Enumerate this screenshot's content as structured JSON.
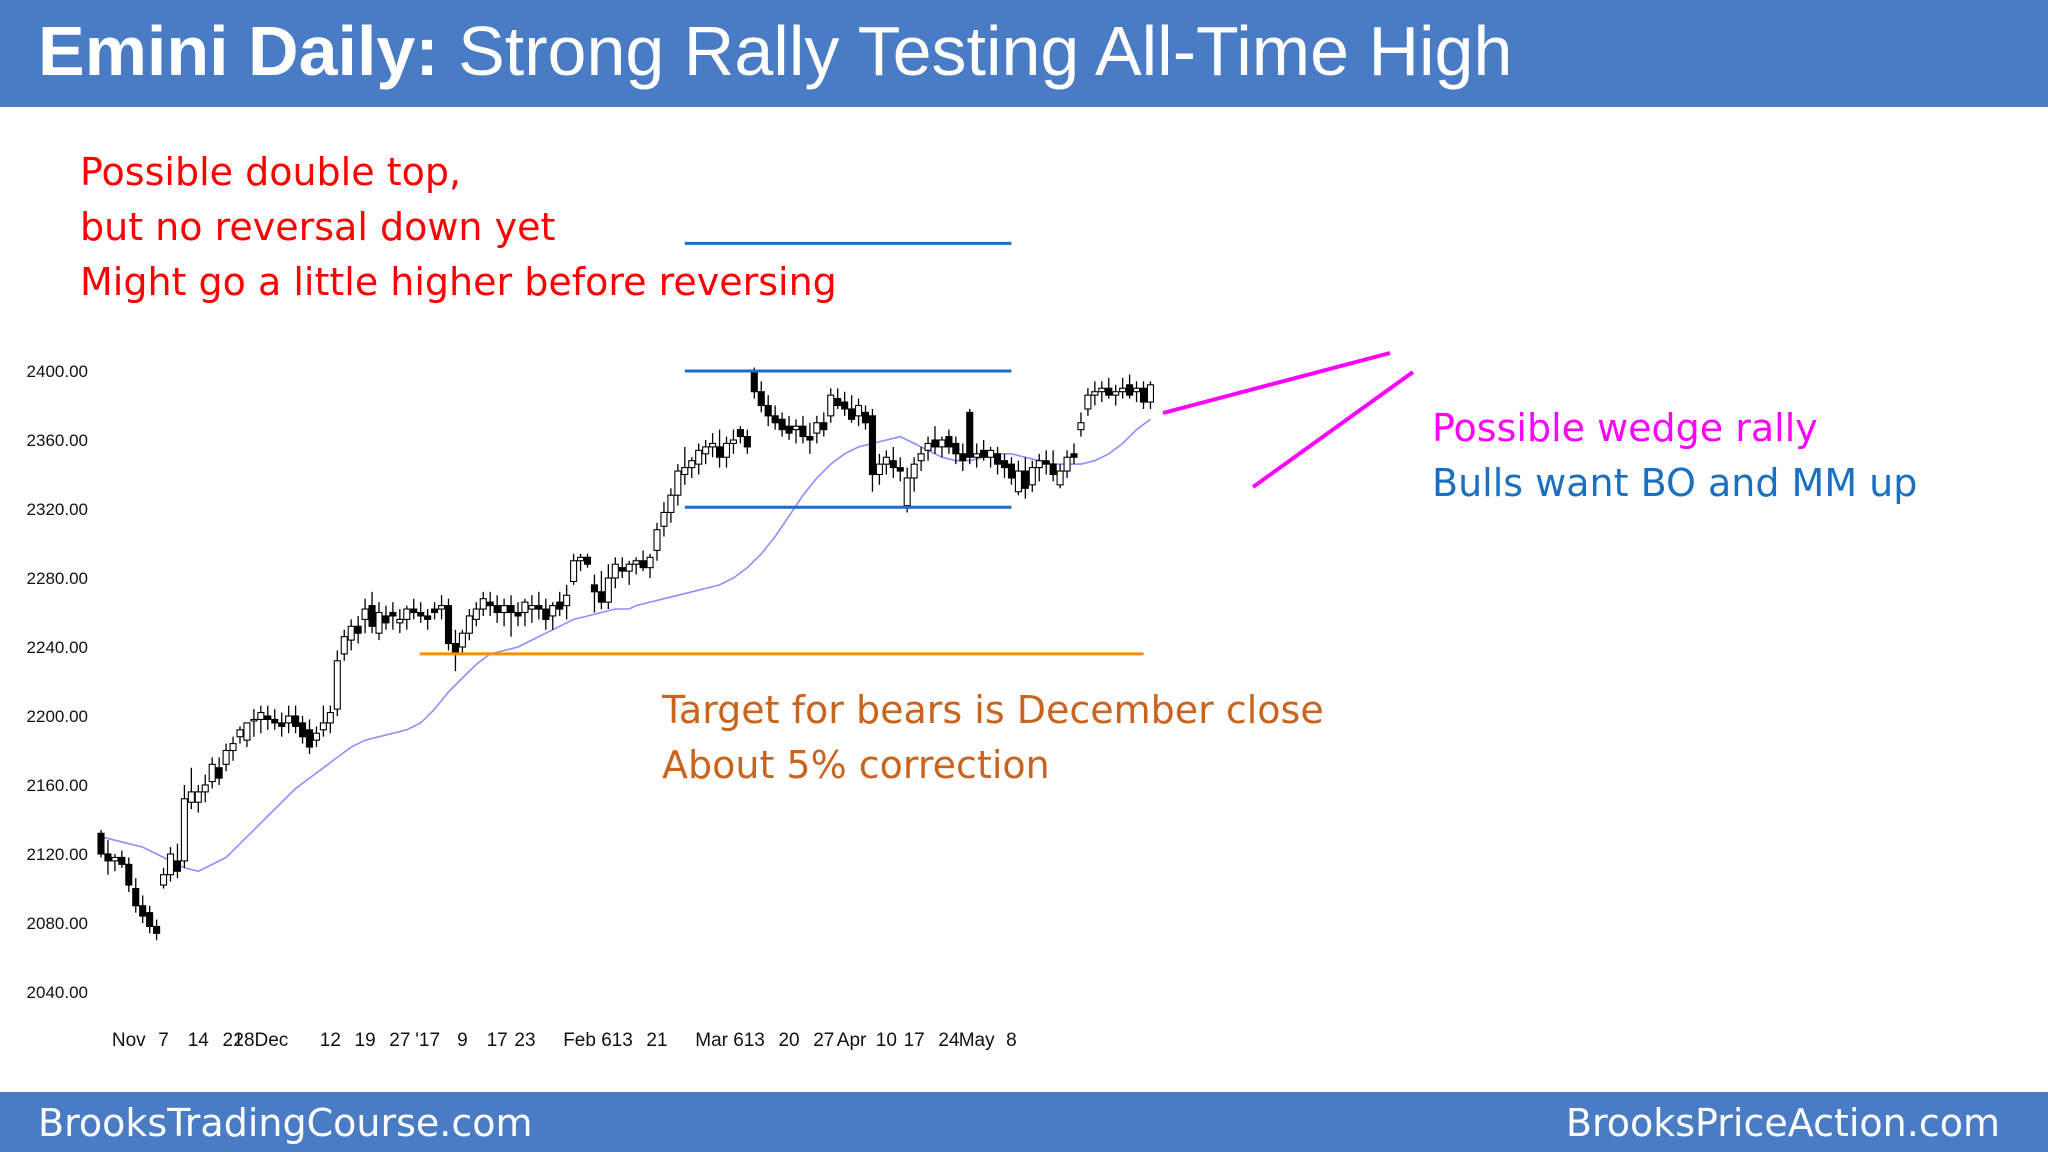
{
  "header": {
    "title_bold": "Emini Daily:",
    "title_rest": " Strong Rally Testing All-Time High"
  },
  "footer": {
    "left": "BrooksTradingCourse.com",
    "right": "BrooksPriceAction.com"
  },
  "annotations": {
    "red": [
      "Possible double top,",
      "but no reversal down yet",
      "Might go a little higher before reversing"
    ],
    "pink": "Possible wedge rally",
    "blue": "Bulls want BO and MM up",
    "orange": [
      "Target for bears is December close",
      "About 5% correction"
    ]
  },
  "colors": {
    "header_bg": "#4a7cc5",
    "red_text": "#ff0000",
    "pink": "#ff00ff",
    "blue_line": "#1a6fc0",
    "orange": "#ff8c00",
    "orange_text": "#c8641e",
    "ema": "#8b8fff"
  },
  "chart_data": {
    "type": "candlestick",
    "y_ticks": [
      "2400.00",
      "2360.00",
      "2320.00",
      "2280.00",
      "2240.00",
      "2200.00",
      "2160.00",
      "2120.00",
      "2080.00",
      "2040.00"
    ],
    "ylim": [
      2040,
      2400
    ],
    "x_ticks": [
      "Nov",
      "7",
      "14",
      "21",
      "28Dec",
      "12",
      "19",
      "27",
      "'17",
      "9",
      "17",
      "23",
      "Feb 6",
      "13",
      "21",
      "Mar 6",
      "13",
      "20",
      "27",
      "Apr",
      "10",
      "17",
      "24",
      "May",
      "8"
    ],
    "x_tick_bar_index": [
      4,
      9,
      14,
      19,
      23,
      33,
      38,
      43,
      47,
      52,
      57,
      61,
      70,
      75,
      80,
      89,
      94,
      99,
      104,
      108,
      113,
      117,
      122,
      126,
      131
    ],
    "candles": [
      [
        2132,
        2134,
        2118,
        2120
      ],
      [
        2120,
        2128,
        2108,
        2116
      ],
      [
        2116,
        2120,
        2110,
        2118
      ],
      [
        2118,
        2122,
        2112,
        2114
      ],
      [
        2114,
        2118,
        2098,
        2102
      ],
      [
        2100,
        2106,
        2086,
        2090
      ],
      [
        2090,
        2096,
        2080,
        2084
      ],
      [
        2086,
        2090,
        2074,
        2078
      ],
      [
        2078,
        2082,
        2070,
        2074
      ],
      [
        2102,
        2112,
        2100,
        2108
      ],
      [
        2108,
        2124,
        2104,
        2120
      ],
      [
        2116,
        2126,
        2106,
        2110
      ],
      [
        2116,
        2160,
        2112,
        2152
      ],
      [
        2150,
        2170,
        2146,
        2156
      ],
      [
        2150,
        2160,
        2144,
        2156
      ],
      [
        2156,
        2166,
        2150,
        2160
      ],
      [
        2162,
        2176,
        2158,
        2172
      ],
      [
        2170,
        2176,
        2160,
        2164
      ],
      [
        2172,
        2184,
        2168,
        2180
      ],
      [
        2180,
        2188,
        2174,
        2184
      ],
      [
        2188,
        2194,
        2184,
        2192
      ],
      [
        2186,
        2196,
        2182,
        2196
      ],
      [
        2198,
        2204,
        2188,
        2198
      ],
      [
        2198,
        2206,
        2190,
        2202
      ],
      [
        2200,
        2206,
        2192,
        2198
      ],
      [
        2198,
        2204,
        2192,
        2196
      ],
      [
        2196,
        2202,
        2188,
        2194
      ],
      [
        2196,
        2206,
        2190,
        2200
      ],
      [
        2200,
        2206,
        2190,
        2194
      ],
      [
        2196,
        2200,
        2184,
        2188
      ],
      [
        2192,
        2198,
        2178,
        2182
      ],
      [
        2186,
        2194,
        2182,
        2190
      ],
      [
        2192,
        2206,
        2188,
        2196
      ],
      [
        2196,
        2206,
        2190,
        2202
      ],
      [
        2204,
        2238,
        2200,
        2232
      ],
      [
        2236,
        2250,
        2232,
        2246
      ],
      [
        2244,
        2256,
        2238,
        2252
      ],
      [
        2252,
        2258,
        2242,
        2248
      ],
      [
        2256,
        2268,
        2248,
        2262
      ],
      [
        2264,
        2272,
        2248,
        2252
      ],
      [
        2248,
        2266,
        2244,
        2260
      ],
      [
        2258,
        2264,
        2250,
        2254
      ],
      [
        2260,
        2266,
        2250,
        2258
      ],
      [
        2254,
        2262,
        2248,
        2256
      ],
      [
        2256,
        2264,
        2250,
        2262
      ],
      [
        2262,
        2268,
        2256,
        2260
      ],
      [
        2260,
        2266,
        2254,
        2258
      ],
      [
        2258,
        2262,
        2250,
        2256
      ],
      [
        2262,
        2266,
        2256,
        2260
      ],
      [
        2262,
        2270,
        2256,
        2264
      ],
      [
        2264,
        2268,
        2238,
        2242
      ],
      [
        2242,
        2250,
        2226,
        2236
      ],
      [
        2240,
        2250,
        2236,
        2248
      ],
      [
        2248,
        2262,
        2244,
        2258
      ],
      [
        2256,
        2266,
        2252,
        2262
      ],
      [
        2262,
        2272,
        2258,
        2268
      ],
      [
        2266,
        2272,
        2258,
        2264
      ],
      [
        2264,
        2270,
        2254,
        2260
      ],
      [
        2260,
        2268,
        2252,
        2264
      ],
      [
        2264,
        2270,
        2246,
        2260
      ],
      [
        2260,
        2266,
        2252,
        2258
      ],
      [
        2260,
        2268,
        2252,
        2266
      ],
      [
        2262,
        2270,
        2254,
        2264
      ],
      [
        2264,
        2272,
        2256,
        2262
      ],
      [
        2262,
        2268,
        2250,
        2256
      ],
      [
        2258,
        2266,
        2250,
        2264
      ],
      [
        2266,
        2272,
        2258,
        2262
      ],
      [
        2264,
        2276,
        2256,
        2270
      ],
      [
        2278,
        2294,
        2276,
        2290
      ],
      [
        2290,
        2294,
        2284,
        2292
      ],
      [
        2292,
        2294,
        2286,
        2288
      ],
      [
        2276,
        2282,
        2260,
        2272
      ],
      [
        2272,
        2284,
        2262,
        2266
      ],
      [
        2266,
        2288,
        2262,
        2280
      ],
      [
        2280,
        2292,
        2274,
        2288
      ],
      [
        2286,
        2292,
        2280,
        2284
      ],
      [
        2284,
        2290,
        2276,
        2288
      ],
      [
        2288,
        2292,
        2282,
        2290
      ],
      [
        2290,
        2296,
        2284,
        2286
      ],
      [
        2286,
        2294,
        2280,
        2292
      ],
      [
        2296,
        2312,
        2290,
        2308
      ],
      [
        2310,
        2324,
        2304,
        2318
      ],
      [
        2318,
        2332,
        2312,
        2328
      ],
      [
        2328,
        2346,
        2322,
        2342
      ],
      [
        2340,
        2356,
        2334,
        2344
      ],
      [
        2344,
        2350,
        2338,
        2348
      ],
      [
        2346,
        2358,
        2340,
        2354
      ],
      [
        2352,
        2360,
        2346,
        2356
      ],
      [
        2356,
        2364,
        2350,
        2358
      ],
      [
        2356,
        2366,
        2344,
        2350
      ],
      [
        2350,
        2362,
        2344,
        2358
      ],
      [
        2358,
        2366,
        2352,
        2360
      ],
      [
        2366,
        2368,
        2358,
        2362
      ],
      [
        2362,
        2366,
        2352,
        2356
      ],
      [
        2400,
        2402,
        2384,
        2388
      ],
      [
        2388,
        2394,
        2376,
        2380
      ],
      [
        2380,
        2386,
        2368,
        2374
      ],
      [
        2374,
        2380,
        2366,
        2370
      ],
      [
        2372,
        2376,
        2362,
        2366
      ],
      [
        2368,
        2374,
        2360,
        2364
      ],
      [
        2366,
        2372,
        2358,
        2368
      ],
      [
        2368,
        2374,
        2358,
        2362
      ],
      [
        2362,
        2370,
        2352,
        2360
      ],
      [
        2364,
        2374,
        2358,
        2370
      ],
      [
        2370,
        2376,
        2362,
        2366
      ],
      [
        2374,
        2390,
        2370,
        2386
      ],
      [
        2384,
        2390,
        2378,
        2380
      ],
      [
        2382,
        2388,
        2374,
        2378
      ],
      [
        2378,
        2386,
        2370,
        2372
      ],
      [
        2374,
        2384,
        2368,
        2380
      ],
      [
        2376,
        2380,
        2366,
        2370
      ],
      [
        2374,
        2378,
        2330,
        2340
      ],
      [
        2340,
        2352,
        2334,
        2346
      ],
      [
        2346,
        2354,
        2340,
        2350
      ],
      [
        2348,
        2356,
        2338,
        2344
      ],
      [
        2344,
        2350,
        2336,
        2342
      ],
      [
        2322,
        2344,
        2318,
        2338
      ],
      [
        2338,
        2350,
        2330,
        2346
      ],
      [
        2348,
        2356,
        2342,
        2352
      ],
      [
        2354,
        2362,
        2348,
        2358
      ],
      [
        2360,
        2368,
        2352,
        2356
      ],
      [
        2356,
        2362,
        2350,
        2360
      ],
      [
        2362,
        2366,
        2352,
        2356
      ],
      [
        2358,
        2362,
        2346,
        2352
      ],
      [
        2352,
        2358,
        2342,
        2348
      ],
      [
        2376,
        2378,
        2346,
        2350
      ],
      [
        2350,
        2358,
        2344,
        2352
      ],
      [
        2354,
        2360,
        2348,
        2350
      ],
      [
        2350,
        2356,
        2344,
        2354
      ],
      [
        2352,
        2356,
        2340,
        2346
      ],
      [
        2348,
        2352,
        2338,
        2344
      ],
      [
        2346,
        2350,
        2334,
        2338
      ],
      [
        2330,
        2348,
        2328,
        2342
      ],
      [
        2342,
        2350,
        2326,
        2332
      ],
      [
        2334,
        2348,
        2330,
        2344
      ],
      [
        2344,
        2352,
        2336,
        2348
      ],
      [
        2348,
        2354,
        2340,
        2346
      ],
      [
        2346,
        2354,
        2336,
        2340
      ],
      [
        2334,
        2346,
        2332,
        2342
      ],
      [
        2342,
        2354,
        2338,
        2350
      ],
      [
        2352,
        2358,
        2346,
        2350
      ],
      [
        2366,
        2376,
        2362,
        2370
      ],
      [
        2378,
        2390,
        2374,
        2386
      ],
      [
        2386,
        2394,
        2380,
        2388
      ],
      [
        2388,
        2394,
        2382,
        2390
      ],
      [
        2390,
        2396,
        2384,
        2386
      ],
      [
        2386,
        2392,
        2380,
        2388
      ],
      [
        2388,
        2396,
        2384,
        2390
      ],
      [
        2392,
        2398,
        2384,
        2386
      ],
      [
        2388,
        2394,
        2382,
        2390
      ],
      [
        2390,
        2394,
        2378,
        2382
      ],
      [
        2382,
        2394,
        2378,
        2392
      ]
    ],
    "ema_20": [
      2130,
      2128,
      2126,
      2124,
      2120,
      2116,
      2112,
      2110,
      2114,
      2118,
      2126,
      2134,
      2142,
      2150,
      2158,
      2164,
      2170,
      2176,
      2182,
      2186,
      2188,
      2190,
      2192,
      2196,
      2204,
      2214,
      2222,
      2230,
      2236,
      2238,
      2240,
      2244,
      2248,
      2252,
      2256,
      2258,
      2260,
      2262,
      2262,
      2264,
      2266,
      2268,
      2270,
      2272,
      2274,
      2276,
      2280,
      2286,
      2294,
      2304,
      2316,
      2328,
      2338,
      2346,
      2352,
      2356,
      2358,
      2360,
      2362,
      2358,
      2354,
      2350,
      2348,
      2348,
      2350,
      2352,
      2352,
      2350,
      2348,
      2346,
      2346,
      2346,
      2348,
      2352,
      2358,
      2366,
      2372
    ],
    "lines": [
      {
        "label": "upper range",
        "y": 2400,
        "x_bar": [
          84,
          131
        ]
      },
      {
        "label": "range low",
        "y": 2321,
        "x_bar": [
          84,
          131
        ]
      },
      {
        "label": "measured move target",
        "y": 2474,
        "x_bar": [
          84,
          131
        ]
      },
      {
        "label": "December close",
        "y": 2236,
        "x_bar": [
          47,
          150
        ]
      }
    ]
  }
}
